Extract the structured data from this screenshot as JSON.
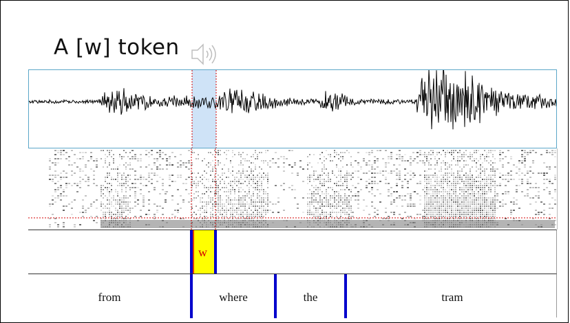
{
  "slide": {
    "title": "A [w] token",
    "speaker_icon": "speaker-sound-icon"
  },
  "segment_tier": {
    "label": "w"
  },
  "word_tier": {
    "words": [
      "from",
      "where",
      "the",
      "tram"
    ]
  },
  "colors": {
    "selection": "#cfe3f7",
    "boundary": "#0000cc",
    "segment_fill": "#ffff00",
    "cursor": "#d40000",
    "waveform_frame": "#5aa6c8"
  }
}
